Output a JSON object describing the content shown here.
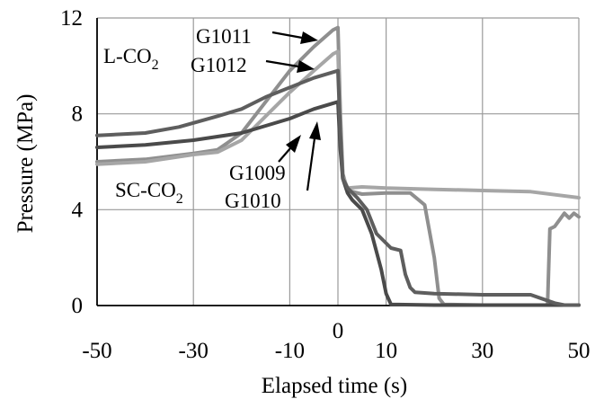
{
  "chart_data": {
    "type": "line",
    "xlabel": "Elapsed time (s)",
    "ylabel": "Pressure (MPa)",
    "xlim": [
      -50,
      50
    ],
    "ylim": [
      0,
      12
    ],
    "grid": true,
    "x_ticks": [
      "-50",
      "-30",
      "-10",
      "0",
      "10",
      "30",
      "50"
    ],
    "y_ticks": [
      "0",
      "4",
      "8",
      "12"
    ],
    "annotations": {
      "g1011": "G1011",
      "g1012": "G1012",
      "g1009": "G1009",
      "g1010": "G1010",
      "lco2": "L-CO",
      "lco2_sub": "2",
      "scco2": "SC-CO",
      "scco2_sub": "2"
    },
    "series": [
      {
        "name": "G1011",
        "color": "#8f8f8f",
        "points": [
          [
            -50,
            6.0
          ],
          [
            -40,
            6.1
          ],
          [
            -30,
            6.35
          ],
          [
            -25,
            6.5
          ],
          [
            -20,
            7.2
          ],
          [
            -15,
            8.5
          ],
          [
            -10,
            9.8
          ],
          [
            -5,
            10.8
          ],
          [
            -1,
            11.5
          ],
          [
            0,
            11.6
          ],
          [
            0.5,
            8.0
          ],
          [
            1,
            5.5
          ],
          [
            2,
            4.8
          ],
          [
            5,
            4.65
          ],
          [
            10,
            4.7
          ],
          [
            15,
            4.7
          ],
          [
            18,
            4.2
          ],
          [
            20,
            2.0
          ],
          [
            21,
            0.3
          ],
          [
            22,
            0.05
          ],
          [
            30,
            0.02
          ],
          [
            40,
            0.02
          ],
          [
            43.5,
            0.02
          ],
          [
            44,
            3.2
          ],
          [
            45,
            3.3
          ],
          [
            47,
            3.85
          ],
          [
            48,
            3.65
          ],
          [
            49,
            3.85
          ],
          [
            50,
            3.7
          ]
        ]
      },
      {
        "name": "G1012",
        "color": "#a6a6a6",
        "points": [
          [
            -50,
            5.9
          ],
          [
            -40,
            6.0
          ],
          [
            -30,
            6.3
          ],
          [
            -25,
            6.4
          ],
          [
            -20,
            6.9
          ],
          [
            -15,
            7.9
          ],
          [
            -10,
            8.9
          ],
          [
            -5,
            9.8
          ],
          [
            -1,
            10.5
          ],
          [
            0,
            10.6
          ],
          [
            0.5,
            7.5
          ],
          [
            1,
            5.4
          ],
          [
            2,
            4.9
          ],
          [
            5,
            4.95
          ],
          [
            10,
            4.9
          ],
          [
            20,
            4.85
          ],
          [
            30,
            4.8
          ],
          [
            40,
            4.75
          ],
          [
            50,
            4.5
          ]
        ]
      },
      {
        "name": "G1009",
        "color": "#4a4a4a",
        "points": [
          [
            -50,
            6.6
          ],
          [
            -40,
            6.7
          ],
          [
            -30,
            6.9
          ],
          [
            -20,
            7.2
          ],
          [
            -15,
            7.5
          ],
          [
            -10,
            7.8
          ],
          [
            -5,
            8.2
          ],
          [
            0,
            8.5
          ],
          [
            0.5,
            6.5
          ],
          [
            1,
            5.3
          ],
          [
            2,
            4.7
          ],
          [
            3,
            4.4
          ],
          [
            5,
            4.0
          ],
          [
            7,
            3.0
          ],
          [
            9,
            1.5
          ],
          [
            10,
            0.5
          ],
          [
            11,
            0.05
          ],
          [
            20,
            0.02
          ],
          [
            30,
            0.02
          ],
          [
            50,
            0.02
          ]
        ]
      },
      {
        "name": "G1010",
        "color": "#5e5e5e",
        "points": [
          [
            -50,
            7.1
          ],
          [
            -40,
            7.2
          ],
          [
            -33,
            7.45
          ],
          [
            -25,
            7.9
          ],
          [
            -20,
            8.2
          ],
          [
            -15,
            8.7
          ],
          [
            -10,
            9.1
          ],
          [
            -5,
            9.5
          ],
          [
            0,
            9.8
          ],
          [
            0.5,
            7.2
          ],
          [
            1,
            5.3
          ],
          [
            2,
            4.9
          ],
          [
            4,
            4.5
          ],
          [
            6,
            4.0
          ],
          [
            8,
            3.0
          ],
          [
            11,
            2.4
          ],
          [
            13,
            2.3
          ],
          [
            14,
            1.3
          ],
          [
            15,
            0.75
          ],
          [
            16,
            0.55
          ],
          [
            20,
            0.5
          ],
          [
            30,
            0.45
          ],
          [
            40,
            0.45
          ],
          [
            45,
            0.1
          ],
          [
            47,
            0.02
          ],
          [
            50,
            0.02
          ]
        ]
      }
    ]
  }
}
